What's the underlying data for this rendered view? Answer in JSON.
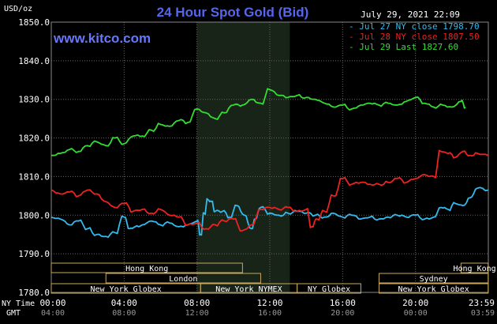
{
  "chart_data": {
    "type": "line",
    "title": "24 Hour Spot Gold (Bid)",
    "units_label": "USD/oz",
    "watermark": "www.kitco.com",
    "timestamp": "July 29, 2021 22:09",
    "ylim": [
      1780,
      1850
    ],
    "y_ticks": [
      1780,
      1790,
      1800,
      1810,
      1820,
      1830,
      1840,
      1850
    ],
    "y_tick_labels": [
      "1780.0",
      "1790.0",
      "1800.0",
      "1810.0",
      "1820.0",
      "1830.0",
      "1840.0",
      "1850.0"
    ],
    "xlim": [
      0,
      24
    ],
    "x_ticks": [
      0,
      4,
      8,
      12,
      16,
      20,
      24
    ],
    "x_tick_labels_ny": [
      "00:00",
      "04:00",
      "08:00",
      "12:00",
      "16:00",
      "20:00",
      "23:59"
    ],
    "x_tick_labels_gmt": [
      "04:00",
      "08:00",
      "12:00",
      "16:00",
      "20:00",
      "00:00",
      "03:59"
    ],
    "x_row_label_ny": "NY Time",
    "x_row_label_gmt": "GMT",
    "grid": true,
    "highlight_range": [
      8,
      13.1
    ],
    "legend_position": "top-right",
    "series": [
      {
        "name": "Jul 27 NY close 1798.70",
        "color": "#33bbee",
        "x": [
          0,
          0.5,
          1,
          1.5,
          2,
          2.5,
          3,
          3.5,
          4,
          4.3,
          4.6,
          5,
          5.5,
          6,
          6.5,
          7,
          7.5,
          8,
          8.2,
          8.4,
          8.6,
          8.8,
          9,
          9.4,
          9.8,
          10.2,
          10.6,
          11,
          11.2,
          11.5,
          12,
          12.5,
          13,
          13.5,
          14,
          14.5,
          15,
          15.5,
          16,
          16.5,
          17,
          17.5,
          18,
          18.5,
          19,
          19.5,
          20,
          20.5,
          21,
          21.4,
          21.8,
          22.2,
          22.6,
          23,
          23.4,
          23.99
        ],
        "y": [
          1799.5,
          1799.0,
          1797.5,
          1798.5,
          1796.5,
          1795.0,
          1794.5,
          1795.5,
          1799.5,
          1796.5,
          1797.0,
          1797.5,
          1798.5,
          1797.5,
          1798.0,
          1797.0,
          1797.5,
          1798.5,
          1795.0,
          1800.5,
          1804.0,
          1803.5,
          1801.0,
          1801.0,
          1799.5,
          1802.5,
          1800.0,
          1796.5,
          1799.0,
          1802.0,
          1800.5,
          1800.0,
          1800.5,
          1801.0,
          1800.5,
          1800.0,
          1799.5,
          1800.5,
          1799.5,
          1800.0,
          1799.0,
          1799.5,
          1799.0,
          1799.5,
          1800.0,
          1799.5,
          1800.0,
          1799.0,
          1799.5,
          1802.0,
          1801.5,
          1803.0,
          1802.5,
          1804.5,
          1807.0,
          1806.5
        ]
      },
      {
        "name": "Jul 28 NY close 1807.50",
        "color": "#ee2222",
        "x": [
          0,
          0.5,
          1,
          1.5,
          2,
          2.5,
          3,
          3.5,
          4,
          4.5,
          5,
          5.5,
          6,
          6.5,
          7,
          7.5,
          8,
          8.5,
          9,
          9.5,
          10,
          10.5,
          11,
          11.5,
          12,
          12.5,
          13,
          13.5,
          14,
          14.3,
          14.6,
          15,
          15.5,
          16,
          16.5,
          17,
          17.5,
          18,
          18.5,
          19,
          19.5,
          20,
          20.5,
          21,
          21.4,
          21.8,
          22.2,
          22.6,
          23,
          23.4,
          23.99
        ],
        "y": [
          1806.5,
          1805.5,
          1806.0,
          1805.0,
          1806.5,
          1805.5,
          1803.5,
          1802.0,
          1803.0,
          1801.0,
          1801.5,
          1800.5,
          1801.5,
          1800.0,
          1799.5,
          1797.5,
          1798.0,
          1796.5,
          1797.5,
          1798.5,
          1799.0,
          1796.0,
          1797.5,
          1801.5,
          1802.0,
          1801.5,
          1802.0,
          1801.0,
          1801.5,
          1797.0,
          1799.0,
          1801.0,
          1805.0,
          1809.5,
          1808.0,
          1808.5,
          1808.0,
          1808.0,
          1808.5,
          1809.5,
          1808.5,
          1809.5,
          1810.5,
          1810.0,
          1816.5,
          1816.0,
          1815.0,
          1816.5,
          1815.5,
          1816.0,
          1815.5
        ]
      },
      {
        "name": "Jul 29 Last 1827.60",
        "color": "#33dd33",
        "x": [
          0,
          0.5,
          1,
          1.5,
          2,
          2.5,
          3,
          3.5,
          4,
          4.5,
          5,
          5.5,
          6,
          6.5,
          7,
          7.5,
          8,
          8.5,
          9,
          9.5,
          10,
          10.5,
          11,
          11.5,
          12,
          12.5,
          13,
          13.5,
          14,
          14.5,
          15,
          15.5,
          16,
          16.5,
          17,
          17.5,
          18,
          18.5,
          19,
          19.5,
          20,
          20.5,
          21,
          21.5,
          22,
          22.5,
          22.75
        ],
        "y": [
          1815.5,
          1816.0,
          1817.0,
          1816.5,
          1818.0,
          1819.0,
          1818.0,
          1820.0,
          1818.5,
          1820.5,
          1820.5,
          1822.0,
          1823.5,
          1823.0,
          1824.5,
          1824.0,
          1827.5,
          1826.5,
          1825.0,
          1826.5,
          1828.5,
          1828.5,
          1830.0,
          1829.0,
          1832.5,
          1831.0,
          1830.5,
          1831.0,
          1830.5,
          1830.0,
          1829.0,
          1828.0,
          1828.5,
          1827.5,
          1828.5,
          1829.0,
          1828.5,
          1829.0,
          1828.5,
          1829.5,
          1830.5,
          1829.0,
          1828.0,
          1828.5,
          1828.0,
          1829.5,
          1828.0
        ]
      }
    ],
    "market_sessions": [
      {
        "label": "Hong Kong",
        "start": 0,
        "end": 10.5,
        "row": 1
      },
      {
        "label": "Hong Kong",
        "start": 22.5,
        "end": 23.99,
        "row": 1
      },
      {
        "label": "London",
        "start": 3.0,
        "end": 11.5,
        "row": 2
      },
      {
        "label": "Sydney",
        "start": 18.0,
        "end": 23.99,
        "row": 2
      },
      {
        "label": "New York Globex",
        "start": 0,
        "end": 8.2,
        "row": 3
      },
      {
        "label": "New York NYMEX",
        "start": 8.2,
        "end": 13.5,
        "row": 3
      },
      {
        "label": "NY Globex",
        "start": 13.5,
        "end": 17.0,
        "row": 3
      },
      {
        "label": "New York Globex",
        "start": 18.0,
        "end": 23.99,
        "row": 3
      }
    ]
  }
}
